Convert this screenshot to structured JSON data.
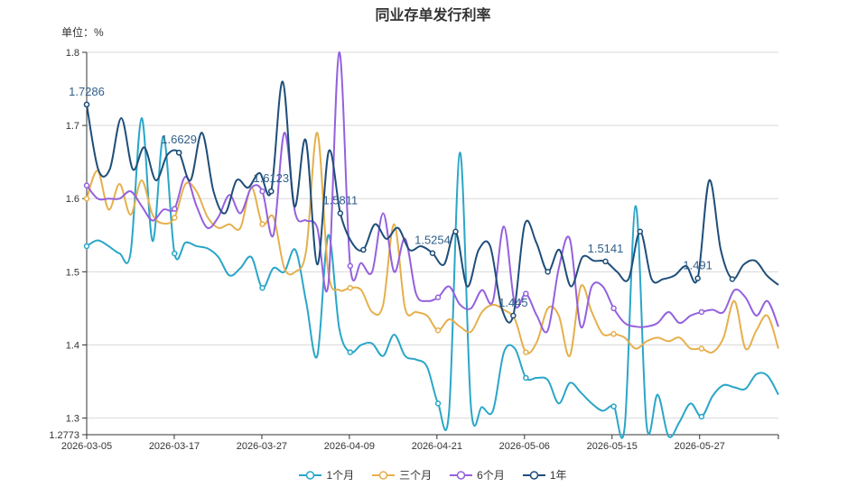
{
  "chart_data": {
    "type": "line",
    "title": "同业存单发行利率",
    "unit_label": "单位：%",
    "ylim": [
      1.2773,
      1.8
    ],
    "y_ticks": [
      1.3,
      1.4,
      1.5,
      1.6,
      1.7,
      1.8
    ],
    "y_min_label": "1.2773",
    "x_tick_labels": [
      "2026-03-05",
      "2026-03-17",
      "2026-03-27",
      "2026-04-09",
      "2026-04-21",
      "2026-05-06",
      "2026-05-15",
      "2026-05-27"
    ],
    "x_tick_positions": [
      0,
      10,
      20,
      30,
      40,
      50,
      60,
      70
    ],
    "x_count": 80,
    "series": [
      {
        "name": "1个月",
        "color": "#2aa6c8",
        "values": [
          1.535,
          1.543,
          1.535,
          1.525,
          1.526,
          1.71,
          1.542,
          1.685,
          1.525,
          1.54,
          1.535,
          1.532,
          1.52,
          1.495,
          1.505,
          1.52,
          1.478,
          1.505,
          1.5,
          1.53,
          1.458,
          1.385,
          1.55,
          1.423,
          1.39,
          1.4,
          1.402,
          1.385,
          1.414,
          1.385,
          1.38,
          1.37,
          1.32,
          1.308,
          1.663,
          1.315,
          1.315,
          1.31,
          1.39,
          1.395,
          1.355,
          1.355,
          1.352,
          1.32,
          1.348,
          1.335,
          1.32,
          1.31,
          1.316,
          1.288,
          1.59,
          1.29,
          1.332,
          1.275,
          1.295,
          1.32,
          1.302,
          1.33,
          1.345,
          1.342,
          1.34,
          1.36,
          1.358,
          1.332
        ],
        "label_points": []
      },
      {
        "name": "三个月",
        "color": "#e5b04c",
        "values": [
          1.6,
          1.638,
          1.585,
          1.62,
          1.578,
          1.625,
          1.578,
          1.566,
          1.574,
          1.62,
          1.61,
          1.575,
          1.56,
          1.565,
          1.56,
          1.615,
          1.565,
          1.575,
          1.505,
          1.5,
          1.53,
          1.69,
          1.5,
          1.475,
          1.478,
          1.475,
          1.445,
          1.455,
          1.565,
          1.45,
          1.445,
          1.44,
          1.42,
          1.435,
          1.425,
          1.418,
          1.445,
          1.455,
          1.448,
          1.435,
          1.39,
          1.404,
          1.45,
          1.44,
          1.385,
          1.48,
          1.445,
          1.415,
          1.415,
          1.41,
          1.395,
          1.405,
          1.41,
          1.405,
          1.41,
          1.395,
          1.395,
          1.39,
          1.41,
          1.46,
          1.395,
          1.42,
          1.44,
          1.395
        ],
        "label_points": []
      },
      {
        "name": "6个月",
        "color": "#9461de",
        "values": [
          1.618,
          1.6,
          1.6,
          1.6,
          1.61,
          1.59,
          1.57,
          1.585,
          1.586,
          1.63,
          1.59,
          1.56,
          1.575,
          1.605,
          1.58,
          1.615,
          1.61,
          1.55,
          1.69,
          1.58,
          1.57,
          1.56,
          1.482,
          1.8,
          1.508,
          1.512,
          1.5,
          1.58,
          1.5,
          1.545,
          1.47,
          1.46,
          1.465,
          1.48,
          1.455,
          1.45,
          1.475,
          1.46,
          1.562,
          1.455,
          1.47,
          1.44,
          1.42,
          1.505,
          1.545,
          1.425,
          1.48,
          1.48,
          1.45,
          1.43,
          1.425,
          1.425,
          1.43,
          1.445,
          1.43,
          1.44,
          1.445,
          1.448,
          1.445,
          1.475,
          1.465,
          1.44,
          1.46,
          1.425
        ],
        "label_points": []
      },
      {
        "name": "1年",
        "color": "#1f4e79",
        "values": [
          1.7286,
          1.64,
          1.64,
          1.71,
          1.64,
          1.67,
          1.625,
          1.66,
          1.6629,
          1.625,
          1.69,
          1.61,
          1.58,
          1.625,
          1.615,
          1.635,
          1.61,
          1.76,
          1.59,
          1.68,
          1.51,
          1.665,
          1.58,
          1.54,
          1.53,
          1.565,
          1.545,
          1.56,
          1.53,
          1.535,
          1.5254,
          1.51,
          1.555,
          1.48,
          1.53,
          1.535,
          1.45,
          1.44,
          1.565,
          1.54,
          1.5,
          1.53,
          1.48,
          1.52,
          1.515,
          1.5141,
          1.5,
          1.49,
          1.555,
          1.49,
          1.49,
          1.495,
          1.508,
          1.491,
          1.625,
          1.53,
          1.49,
          1.51,
          1.515,
          1.495,
          1.482
        ],
        "label_points": [
          {
            "index": 0,
            "text": "1.7286"
          },
          {
            "index": 8,
            "text": "1.6629"
          },
          {
            "index": 16,
            "text": "1.6123"
          },
          {
            "index": 22,
            "text": "1.5811"
          },
          {
            "index": 30,
            "text": "1.5254"
          },
          {
            "index": 37,
            "text": "1.445"
          },
          {
            "index": 45,
            "text": "1.5141"
          },
          {
            "index": 53,
            "text": "1.491"
          }
        ]
      }
    ]
  }
}
